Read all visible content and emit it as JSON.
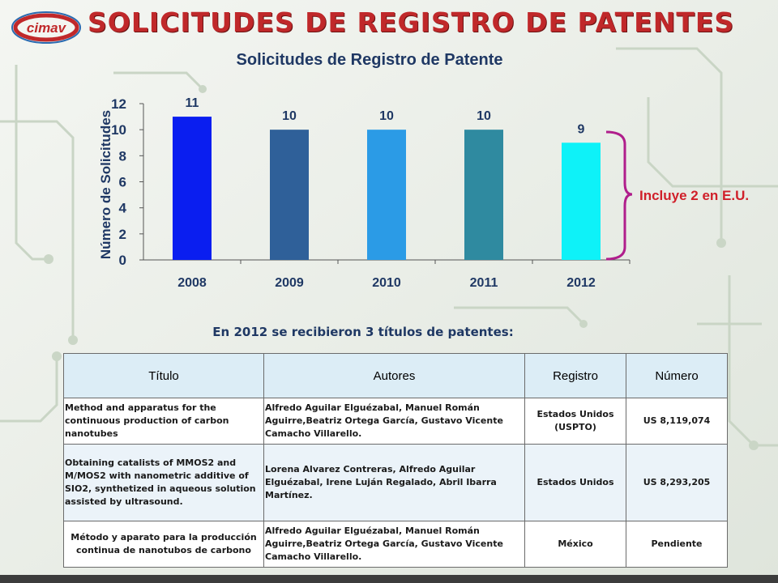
{
  "slide": {
    "title": "SOLICITUDES DE REGISTRO DE PATENTES",
    "logo_text": "cimav",
    "colors": {
      "title": "#c0282a",
      "accent": "#1f3864",
      "note": "#d0202a"
    }
  },
  "chart_data": {
    "type": "bar",
    "title": "Solicitudes de Registro de Patente",
    "xlabel": "",
    "ylabel": "Número de Solicitudes",
    "categories": [
      "2008",
      "2009",
      "2010",
      "2011",
      "2012"
    ],
    "values": [
      11,
      10,
      10,
      10,
      9
    ],
    "data_labels": [
      "11",
      "10",
      "10",
      "10",
      "9"
    ],
    "bar_colors": [
      "#0a1ef0",
      "#2f6099",
      "#2b9be6",
      "#2f8aa0",
      "#0ef2f8"
    ],
    "yticks": [
      "0",
      "2",
      "4",
      "6",
      "8",
      "10",
      "12"
    ],
    "ylim": [
      0,
      12
    ],
    "grid": false,
    "annotation": {
      "text": "Incluye 2 en E.U.",
      "target": "2012"
    }
  },
  "subtitle": "En 2012 se recibieron 3 títulos de patentes:",
  "table": {
    "headers": [
      "Título",
      "Autores",
      "Registro",
      "Número"
    ],
    "rows": [
      [
        "Method and apparatus for the continuous production of carbon nanotubes",
        "Alfredo Aguilar Elguézabal, Manuel Román Aguirre,Beatriz Ortega García, Gustavo Vicente Camacho Villarello.",
        "Estados Unidos (USPTO)",
        "US 8,119,074"
      ],
      [
        "Obtaining catalists of MMOS2 and M/MOS2 with nanometric additive of SIO2, synthetized in aqueous solution assisted by ultrasound.",
        "Lorena Alvarez Contreras, Alfredo Aguilar Elguézabal, Irene Luján Regalado, Abril Ibarra Martínez.",
        "Estados Unidos",
        "US 8,293,205"
      ],
      [
        "Método y aparato para la producción continua de nanotubos de carbono",
        "Alfredo Aguilar Elguézabal, Manuel Román Aguirre,Beatriz Ortega García, Gustavo Vicente Camacho Villarello.",
        "México",
        "Pendiente"
      ]
    ]
  }
}
